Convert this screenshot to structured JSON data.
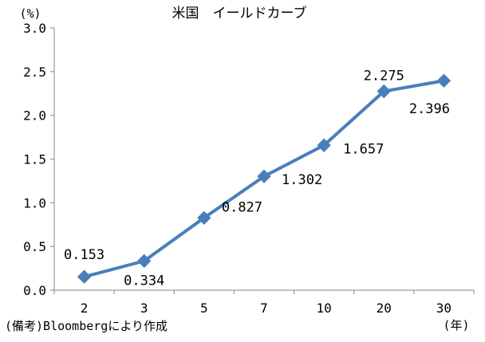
{
  "chart_data": {
    "type": "line",
    "title": "米国　イールドカーブ",
    "y_unit": "(%)",
    "x_unit": "(年)",
    "source_note": "(備考)Bloombergにより作成",
    "categories": [
      "2",
      "3",
      "5",
      "7",
      "10",
      "20",
      "30"
    ],
    "series": [
      {
        "values": [
          0.153,
          0.334,
          0.827,
          1.302,
          1.657,
          2.275,
          2.396
        ],
        "labels": [
          "0.153",
          "0.334",
          "0.827",
          "1.302",
          "1.657",
          "2.275",
          "2.396"
        ]
      }
    ],
    "ylim": [
      0,
      3.0
    ],
    "yticks": [
      "0.0",
      "0.5",
      "1.0",
      "1.5",
      "2.0",
      "2.5",
      "3.0"
    ],
    "grid": false,
    "legend": "none",
    "colors": {
      "series": "#4a7ebb",
      "axis": "#868686"
    }
  }
}
